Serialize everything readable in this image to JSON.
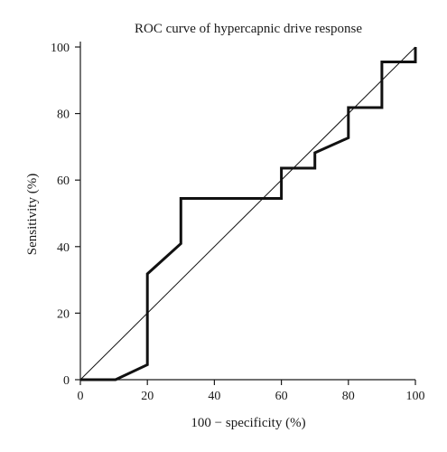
{
  "chart_data": {
    "type": "line",
    "title": "ROC curve of hypercapnic drive response",
    "xlabel": "100 − specificity (%)",
    "ylabel": "Sensitivity (%)",
    "xlim": [
      0,
      100
    ],
    "ylim": [
      0,
      100
    ],
    "xticks": [
      0,
      20,
      40,
      60,
      80,
      100
    ],
    "yticks": [
      0,
      20,
      40,
      60,
      80,
      100
    ],
    "grid": false,
    "series": [
      {
        "style": "thick",
        "x": [
          0,
          10.5,
          20,
          20,
          30,
          30,
          60,
          60,
          70,
          70,
          80,
          80,
          90,
          90,
          100,
          100
        ],
        "y": [
          0,
          0,
          4.5,
          31.8,
          40.9,
          54.5,
          54.5,
          63.6,
          63.6,
          68.2,
          72.7,
          81.8,
          81.8,
          95.5,
          95.5,
          100
        ]
      },
      {
        "style": "thin",
        "x": [
          0,
          100
        ],
        "y": [
          0,
          100
        ]
      }
    ]
  }
}
